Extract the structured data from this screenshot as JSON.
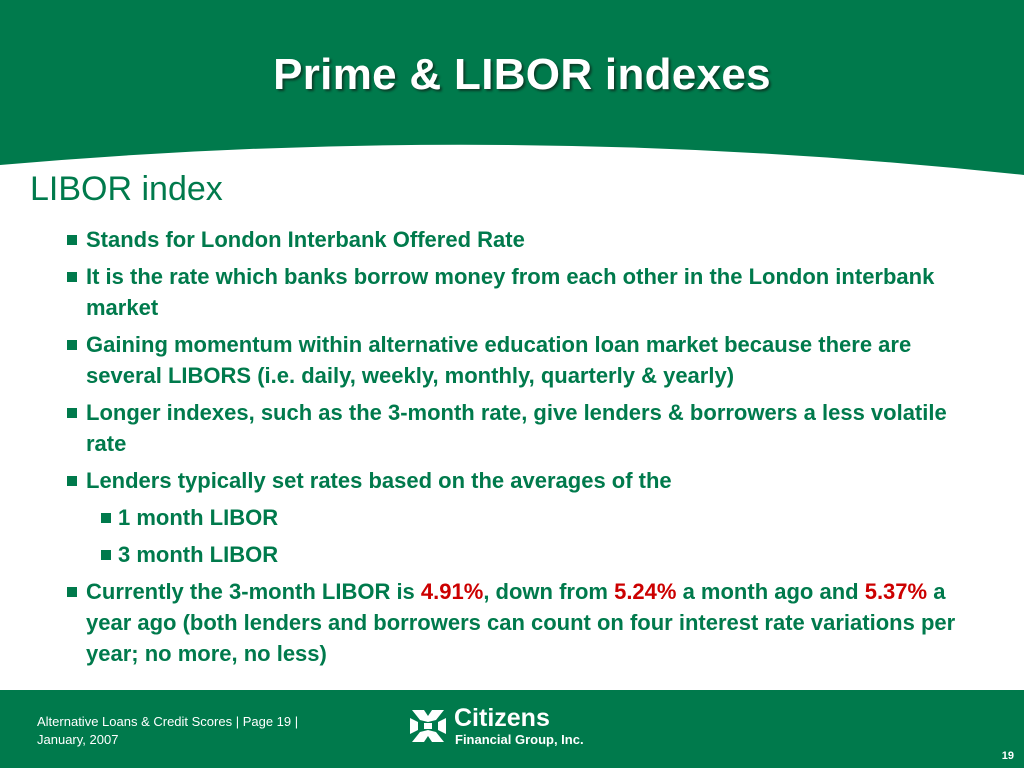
{
  "slide": {
    "title": "Prime & LIBOR indexes",
    "section_heading": "LIBOR index",
    "bullets": {
      "b1": "Stands for London Interbank Offered Rate",
      "b2": "It is the rate which banks borrow money from each other in the London interbank market",
      "b3": "Gaining momentum within alternative education loan market because there are several LIBORS (i.e. daily, weekly, monthly, quarterly & yearly)",
      "b4": "Longer indexes, such as the 3-month rate, give lenders & borrowers a less volatile rate",
      "b5": "Lenders typically set rates based on the averages of the",
      "b5_sub1": "1 month LIBOR",
      "b5_sub2": "3 month LIBOR",
      "b6": {
        "part1": "Currently the 3-month LIBOR is ",
        "rate_current": "4.91%",
        "part2": ", down from ",
        "rate_month_ago": "5.24%",
        "part3": " a month ago and ",
        "rate_year_ago": "5.37%",
        "part4": " a year ago (both lenders and borrowers can count on four interest rate variations per year; no more, no less)"
      }
    }
  },
  "footer": {
    "line1": "Alternative Loans & Credit Scores | Page 19 |",
    "line2": "January, 2007",
    "logo_name": "Citizens",
    "logo_sub": "Financial Group, Inc.",
    "page_number": "19"
  },
  "colors": {
    "brand_green": "#007a4c",
    "highlight_red": "#cc0000",
    "background": "#ffffff"
  },
  "icons": {
    "logo": "citizens-logo-icon",
    "bullet": "square-bullet-icon"
  }
}
